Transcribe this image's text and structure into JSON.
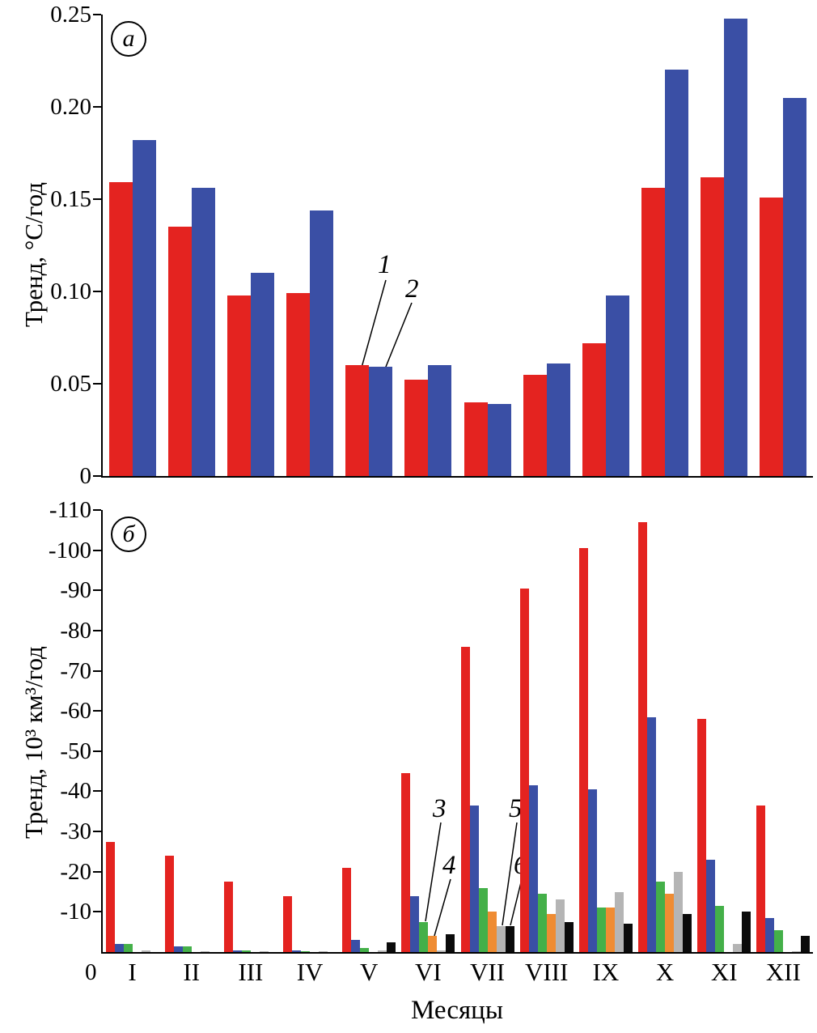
{
  "figure": {
    "xlabel": "Месяцы"
  },
  "chart_data": [
    {
      "type": "bar",
      "panel": "а",
      "ylabel": "Тренд, °С/год",
      "xlabel": "Месяцы",
      "ylim": [
        0,
        0.25
      ],
      "grid": false,
      "legend": "numbered annotations with leader lines",
      "yticks": [
        "0",
        "0.05",
        "0.10",
        "0.15",
        "0.20",
        "0.25"
      ],
      "ytick_values": [
        0,
        0.05,
        0.1,
        0.15,
        0.2,
        0.25
      ],
      "categories": [
        "I",
        "II",
        "III",
        "IV",
        "V",
        "VI",
        "VII",
        "VIII",
        "IX",
        "X",
        "XI",
        "XII"
      ],
      "series": [
        {
          "name": "1",
          "color": "#e42320",
          "values": [
            0.159,
            0.135,
            0.098,
            0.099,
            0.06,
            0.052,
            0.04,
            0.055,
            0.072,
            0.156,
            0.162,
            0.151
          ]
        },
        {
          "name": "2",
          "color": "#3a4fa5",
          "values": [
            0.182,
            0.156,
            0.11,
            0.144,
            0.059,
            0.06,
            0.039,
            0.061,
            0.098,
            0.22,
            0.248,
            0.205
          ]
        }
      ],
      "annotations": [
        {
          "label": "1"
        },
        {
          "label": "2"
        }
      ]
    },
    {
      "type": "bar",
      "panel": "б",
      "ylabel": "Тренд, 10³ км³/год",
      "xlabel": "Месяцы",
      "ylim": [
        0,
        -110
      ],
      "grid": false,
      "legend": "numbered annotations with leader lines",
      "x_origin_label": "0",
      "yticks": [
        "-10",
        "-20",
        "-30",
        "-40",
        "-50",
        "-60",
        "-70",
        "-80",
        "-90",
        "-100",
        "-110"
      ],
      "ytick_values": [
        -10,
        -20,
        -30,
        -40,
        -50,
        -60,
        -70,
        -80,
        -90,
        -100,
        -110
      ],
      "categories": [
        "I",
        "II",
        "III",
        "IV",
        "V",
        "VI",
        "VII",
        "VIII",
        "IX",
        "X",
        "XI",
        "XII"
      ],
      "series": [
        {
          "name": "1",
          "color": "#e42320",
          "values": [
            -27.5,
            -24,
            -17.5,
            -14,
            -21,
            -44.5,
            -76,
            -90.5,
            -100.5,
            -107,
            -58,
            -36.5
          ]
        },
        {
          "name": "2",
          "color": "#3a4fa5",
          "values": [
            -2,
            -1.5,
            -0.5,
            -0.5,
            -3,
            -14,
            -36.5,
            -41.5,
            -40.5,
            -58.5,
            -23,
            -8.5
          ]
        },
        {
          "name": "3",
          "color": "#44b049",
          "values": [
            -2,
            -1.5,
            -0.5,
            -0.3,
            -1,
            -7.5,
            -16,
            -14.5,
            -11,
            -17.5,
            -11.5,
            -5.5
          ]
        },
        {
          "name": "4",
          "color": "#ef8c33",
          "values": [
            0,
            0,
            0,
            0,
            0,
            -4,
            -10,
            -9.5,
            -11,
            -14.5,
            0,
            0
          ]
        },
        {
          "name": "5",
          "color": "#b5b5b5",
          "values": [
            -0.5,
            -0.3,
            -0.3,
            -0.3,
            -0.5,
            -0.5,
            -6.5,
            -13,
            -15,
            -20,
            -2,
            -0.3
          ]
        },
        {
          "name": "6",
          "color": "#0b0b0b",
          "values": [
            0,
            0,
            0,
            0,
            -2.5,
            -4.5,
            -6.5,
            -7.5,
            -7,
            -9.5,
            -10,
            -4
          ]
        }
      ],
      "annotations": [
        {
          "label": "3"
        },
        {
          "label": "4"
        },
        {
          "label": "5"
        },
        {
          "label": "6"
        }
      ]
    }
  ]
}
